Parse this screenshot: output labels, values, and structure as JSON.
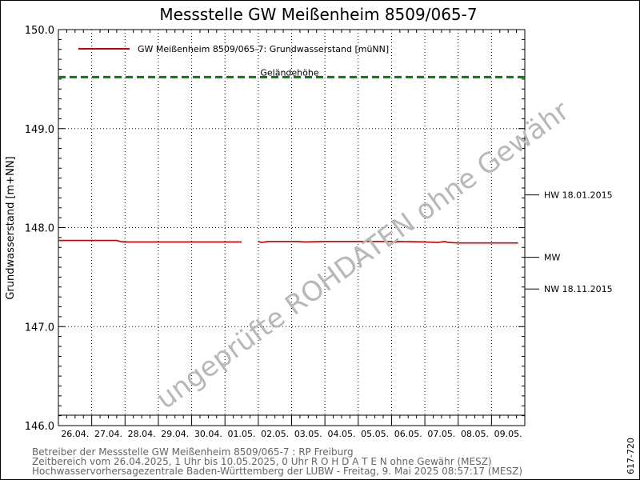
{
  "title": "Messstelle GW Meißenheim 8509/065-7",
  "ylabel": "Grundwasserstand [m+NN]",
  "watermark": "ungeprüfte ROHDATEN ohne Gewähr",
  "side_code": "617-720",
  "footer": {
    "line1": "Betreiber der Messstelle GW Meißenheim 8509/065-7 : RP Freiburg",
    "line2": "Zeitbereich vom 26.04.2025, 1 Uhr bis 10.05.2025, 0 Uhr   R O H D A T E N ohne Gewähr (MESZ)",
    "line3": "Hochwasservorhersagezentrale Baden-Württemberg der LUBW - Freitag, 9. Mai 2025 08:57:17 (MESZ)"
  },
  "colors": {
    "series": "#cc0000",
    "gelaende": "#008000",
    "grid": "#000000",
    "watermark": "#b8b8b8"
  },
  "chart_data": {
    "type": "line",
    "title": "Messstelle GW Meißenheim 8509/065-7",
    "xlabel": "",
    "ylabel": "Grundwasserstand [m+NN]",
    "x_ticks": [
      "26.04.",
      "27.04.",
      "28.04.",
      "29.04.",
      "30.04.",
      "01.05.",
      "02.05.",
      "03.05.",
      "04.05.",
      "05.05.",
      "06.05.",
      "07.05.",
      "08.05.",
      "09.05."
    ],
    "xlim": [
      0,
      14
    ],
    "ylim": [
      146.0,
      150.0
    ],
    "y_ticks": [
      "146.0",
      "147.0",
      "148.0",
      "149.0",
      "150.0"
    ],
    "grid": true,
    "legend": "top-left",
    "series": [
      {
        "name": "GW Meißenheim 8509/065-7: Grundwasserstand  [müNN]",
        "segments": [
          [
            [
              0.0,
              147.87
            ],
            [
              1.75,
              147.87
            ],
            [
              1.85,
              147.86
            ],
            [
              2.0,
              147.855
            ],
            [
              3.0,
              147.855
            ],
            [
              5.5,
              147.855
            ]
          ],
          [
            [
              6.0,
              147.86
            ],
            [
              6.1,
              147.85
            ],
            [
              6.3,
              147.86
            ],
            [
              7.2,
              147.86
            ],
            [
              7.4,
              147.855
            ],
            [
              8.0,
              147.86
            ],
            [
              10.0,
              147.86
            ],
            [
              10.1,
              147.85
            ],
            [
              10.2,
              147.86
            ],
            [
              11.0,
              147.855
            ],
            [
              11.4,
              147.85
            ],
            [
              11.6,
              147.86
            ],
            [
              11.7,
              147.85
            ],
            [
              12.0,
              147.845
            ],
            [
              13.8,
              147.845
            ]
          ]
        ]
      }
    ],
    "reference_lines": [
      {
        "name": "Geländehöhe",
        "value": 149.52
      }
    ],
    "side_marks": [
      {
        "label": "HW 18.01.2015",
        "value": 148.33
      },
      {
        "label": "MW",
        "value": 147.7
      },
      {
        "label": "NW 18.11.2015",
        "value": 147.38
      }
    ]
  }
}
